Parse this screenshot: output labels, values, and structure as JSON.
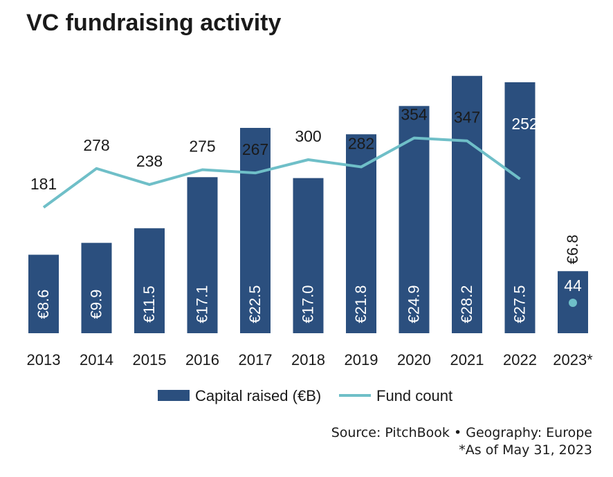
{
  "chart_data": {
    "type": "bar",
    "title": "VC fundraising activity",
    "categories": [
      "2013",
      "2014",
      "2015",
      "2016",
      "2017",
      "2018",
      "2019",
      "2020",
      "2021",
      "2022",
      "2023*"
    ],
    "series": [
      {
        "name": "Capital raised (€B)",
        "type": "bar",
        "color": "#2b4f7e",
        "values": [
          8.6,
          9.9,
          11.5,
          17.1,
          22.5,
          17.0,
          21.8,
          24.9,
          28.2,
          27.5,
          6.8
        ],
        "labels": [
          "€8.6",
          "€9.9",
          "€11.5",
          "€17.1",
          "€22.5",
          "€17.0",
          "€21.8",
          "€24.9",
          "€28.2",
          "€27.5",
          "€6.8"
        ]
      },
      {
        "name": "Fund count",
        "type": "line",
        "color": "#6fbfc8",
        "values": [
          181,
          278,
          238,
          275,
          267,
          300,
          282,
          354,
          347,
          252,
          44
        ],
        "labels": [
          "181",
          "278",
          "238",
          "275",
          "267",
          "300",
          "282",
          "354",
          "347",
          "252",
          "44"
        ]
      }
    ],
    "xlabel": "",
    "ylabel": "",
    "legend": "bottom-center"
  },
  "source": {
    "line1": "Source: PitchBook  •  Geography: Europe",
    "line2": "*As of May 31, 2023"
  }
}
